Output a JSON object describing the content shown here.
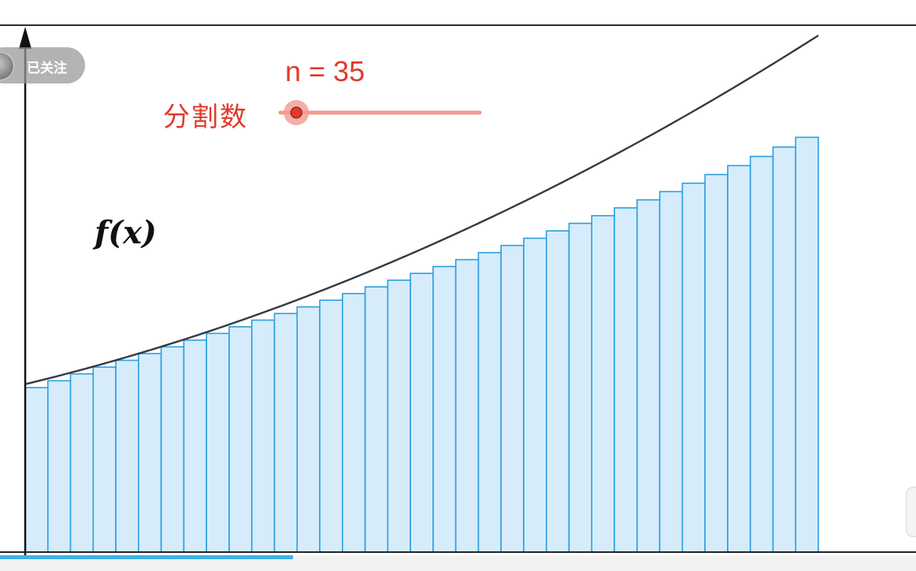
{
  "follow_button": {
    "label": "已关注",
    "avatar_icon": "avatar-icon"
  },
  "slider": {
    "name": "n",
    "value": 35,
    "display": "n = 35",
    "label": "分割数",
    "fraction": 0.08,
    "color": "#e2392b",
    "track_color": "#f39a8e"
  },
  "function_label": "f(x)",
  "progress": {
    "fraction": 0.32,
    "color": "#3fb0ea"
  },
  "chart_data": {
    "type": "bar",
    "description_kind": "riemann-sum",
    "n": 35,
    "x_range": [
      0,
      1
    ],
    "y_range": [
      0,
      1
    ],
    "function_values_at_left": [
      0.325,
      1.0
    ],
    "bar_values": [
      0.3183,
      0.3316,
      0.3449,
      0.3581,
      0.3712,
      0.3843,
      0.3973,
      0.4103,
      0.4232,
      0.4361,
      0.449,
      0.4618,
      0.4746,
      0.4875,
      0.5004,
      0.5133,
      0.5263,
      0.5395,
      0.5527,
      0.5661,
      0.5797,
      0.5935,
      0.6075,
      0.6217,
      0.6363,
      0.6511,
      0.6663,
      0.6818,
      0.6977,
      0.714,
      0.7308,
      0.748,
      0.7658,
      0.784,
      0.8028
    ],
    "bar_fill": "#d6ecfb",
    "bar_stroke": "#2a9fe0",
    "curve_color": "#333a44"
  }
}
